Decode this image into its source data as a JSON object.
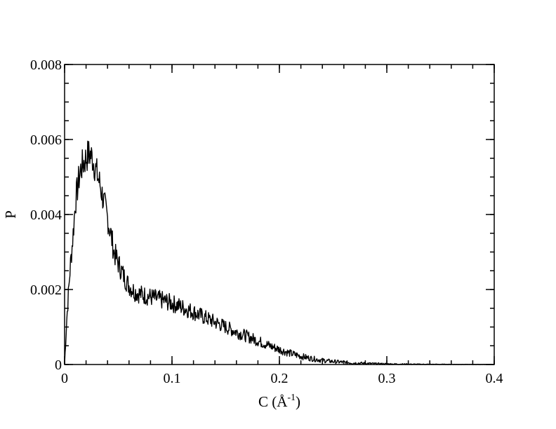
{
  "chart_data": {
    "type": "line",
    "title": "",
    "xlabel_base": "C (Å",
    "xlabel_exponent": "-1",
    "xlabel_close": ")",
    "ylabel": "P",
    "xlim": [
      0,
      0.4
    ],
    "ylim": [
      0,
      0.008
    ],
    "x_ticks": [
      0,
      0.1,
      0.2,
      0.3,
      0.4
    ],
    "x_tick_labels": [
      "0",
      "0.1",
      "0.2",
      "0.3",
      "0.4"
    ],
    "y_ticks": [
      0,
      0.002,
      0.004,
      0.006,
      0.008
    ],
    "y_tick_labels": [
      "0",
      "0.002",
      "0.004",
      "0.006",
      "0.008"
    ],
    "x_minor_step": 0.02,
    "y_minor_step": 0.0005,
    "grid": false,
    "line_color": "#000000",
    "series": [
      {
        "x": [
          0,
          0.002,
          0.005,
          0.008,
          0.01,
          0.013,
          0.015,
          0.018,
          0.02,
          0.022,
          0.024,
          0.026,
          0.028,
          0.03,
          0.033,
          0.036,
          0.04,
          0.043,
          0.046,
          0.05,
          0.053,
          0.056,
          0.06,
          0.065,
          0.07,
          0.075,
          0.08,
          0.085,
          0.09,
          0.095,
          0.1,
          0.105,
          0.11,
          0.115,
          0.12,
          0.125,
          0.13,
          0.14,
          0.15,
          0.16,
          0.17,
          0.18,
          0.19,
          0.2,
          0.21,
          0.22,
          0.23,
          0.24,
          0.25,
          0.26,
          0.27,
          0.28,
          0.29,
          0.3,
          0.31,
          0.32,
          0.33,
          0.34,
          0.35,
          0.36,
          0.37,
          0.38,
          0.39,
          0.4
        ],
        "y": [
          2e-05,
          0.0012,
          0.0025,
          0.0035,
          0.0043,
          0.0049,
          0.0052,
          0.0054,
          0.0055,
          0.0056,
          0.0056,
          0.0055,
          0.0053,
          0.0051,
          0.0048,
          0.0044,
          0.0039,
          0.0035,
          0.003,
          0.0027,
          0.0025,
          0.0023,
          0.0021,
          0.00195,
          0.00188,
          0.00184,
          0.0018,
          0.00176,
          0.00172,
          0.00168,
          0.00163,
          0.00158,
          0.00152,
          0.00146,
          0.0014,
          0.00133,
          0.00126,
          0.00113,
          0.001,
          0.00087,
          0.00075,
          0.00063,
          0.00051,
          0.0004,
          0.0003,
          0.00022,
          0.00016,
          0.00011,
          8e-05,
          6e-05,
          4e-05,
          3e-05,
          2e-05,
          1.5e-05,
          1e-05,
          7e-06,
          5e-06,
          4e-06,
          3e-06,
          2e-06,
          1e-06,
          1e-06,
          1e-06,
          0
        ]
      }
    ]
  }
}
